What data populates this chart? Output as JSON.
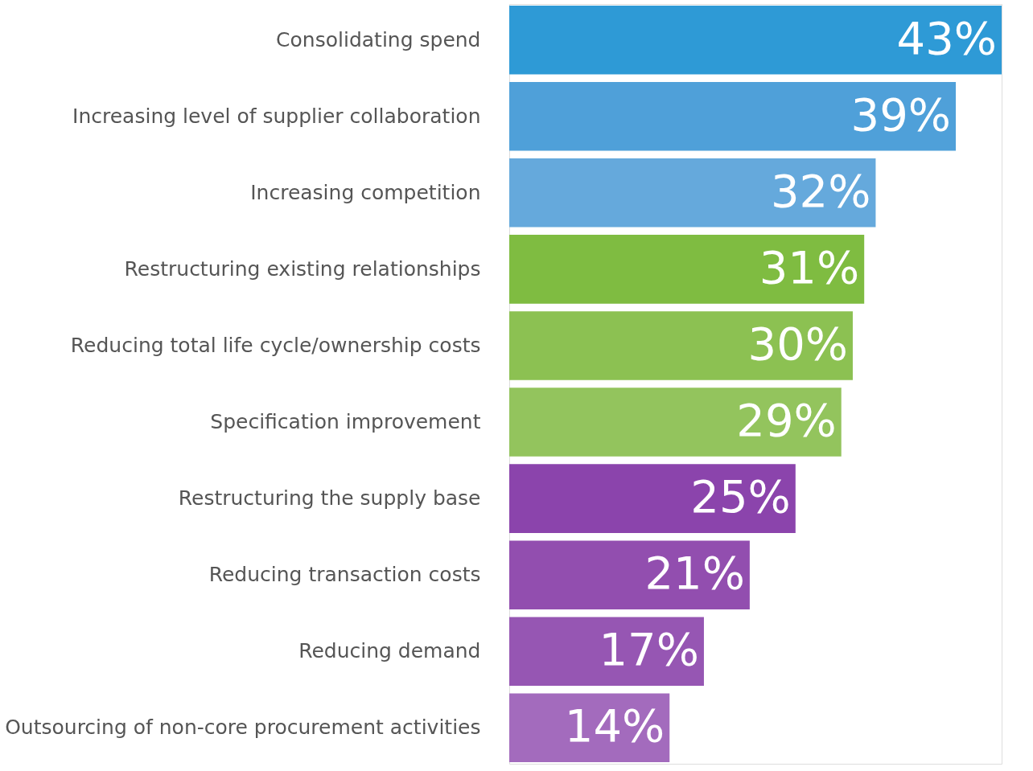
{
  "chart_data": {
    "type": "bar",
    "orientation": "horizontal",
    "tick_labels": "y",
    "categories": [
      "Consolidating spend",
      "Increasing level of supplier collaboration",
      "Increasing competition",
      "Restructuring existing relationships",
      "Reducing total life cycle/ownership costs",
      "Specification improvement",
      "Restructuring the supply base",
      "Reducing transaction costs",
      "Reducing demand",
      "Outsourcing of non-core procurement activities"
    ],
    "values": [
      43,
      39,
      32,
      31,
      30,
      29,
      25,
      21,
      17,
      14
    ],
    "value_labels": [
      "43%",
      "39%",
      "32%",
      "31%",
      "30%",
      "29%",
      "25%",
      "21%",
      "17%",
      "14%"
    ],
    "colors": [
      "#2e9ad6",
      "#4fa0d9",
      "#65a9dc",
      "#7fbc41",
      "#8cc152",
      "#93c45d",
      "#8b44ac",
      "#924eaf",
      "#9656b3",
      "#a36bbd"
    ]
  }
}
